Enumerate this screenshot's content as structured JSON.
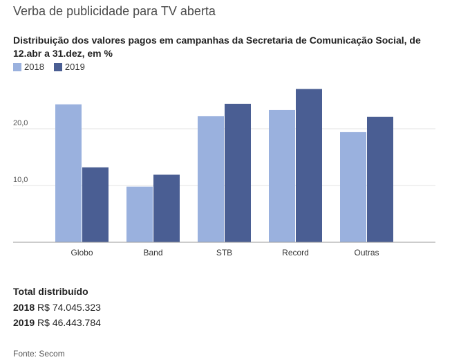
{
  "title": "Verba de publicidade para TV aberta",
  "subtitle": "Distribuição dos valores pagos em campanhas da Secretaria de Comunicação Social, de 12.abr a 31.dez, em %",
  "colors": {
    "s2018": "#9ab1de",
    "s2019": "#4a5e93"
  },
  "chart_data": {
    "type": "bar",
    "title": "Distribuição dos valores pagos em campanhas da Secretaria de Comunicação Social, de 12.abr a 31.dez, em %",
    "categories": [
      "Globo",
      "Band",
      "STB",
      "Record",
      "Outras"
    ],
    "series": [
      {
        "name": "2018",
        "values": [
          24.3,
          9.8,
          22.2,
          23.3,
          19.4
        ]
      },
      {
        "name": "2019",
        "values": [
          13.2,
          11.9,
          24.4,
          27.0,
          22.1
        ]
      }
    ],
    "yticks": [
      {
        "value": 10,
        "label": "10,0"
      },
      {
        "value": 20,
        "label": "20,0"
      }
    ],
    "ylim": [
      0,
      28
    ],
    "grid": true,
    "legend_position": "top-left"
  },
  "totals": {
    "title": "Total distribuído",
    "rows": [
      {
        "year": "2018",
        "value": "R$ 74.045.323"
      },
      {
        "year": "2019",
        "value": "R$ 46.443.784"
      }
    ]
  },
  "source": "Fonte: Secom"
}
